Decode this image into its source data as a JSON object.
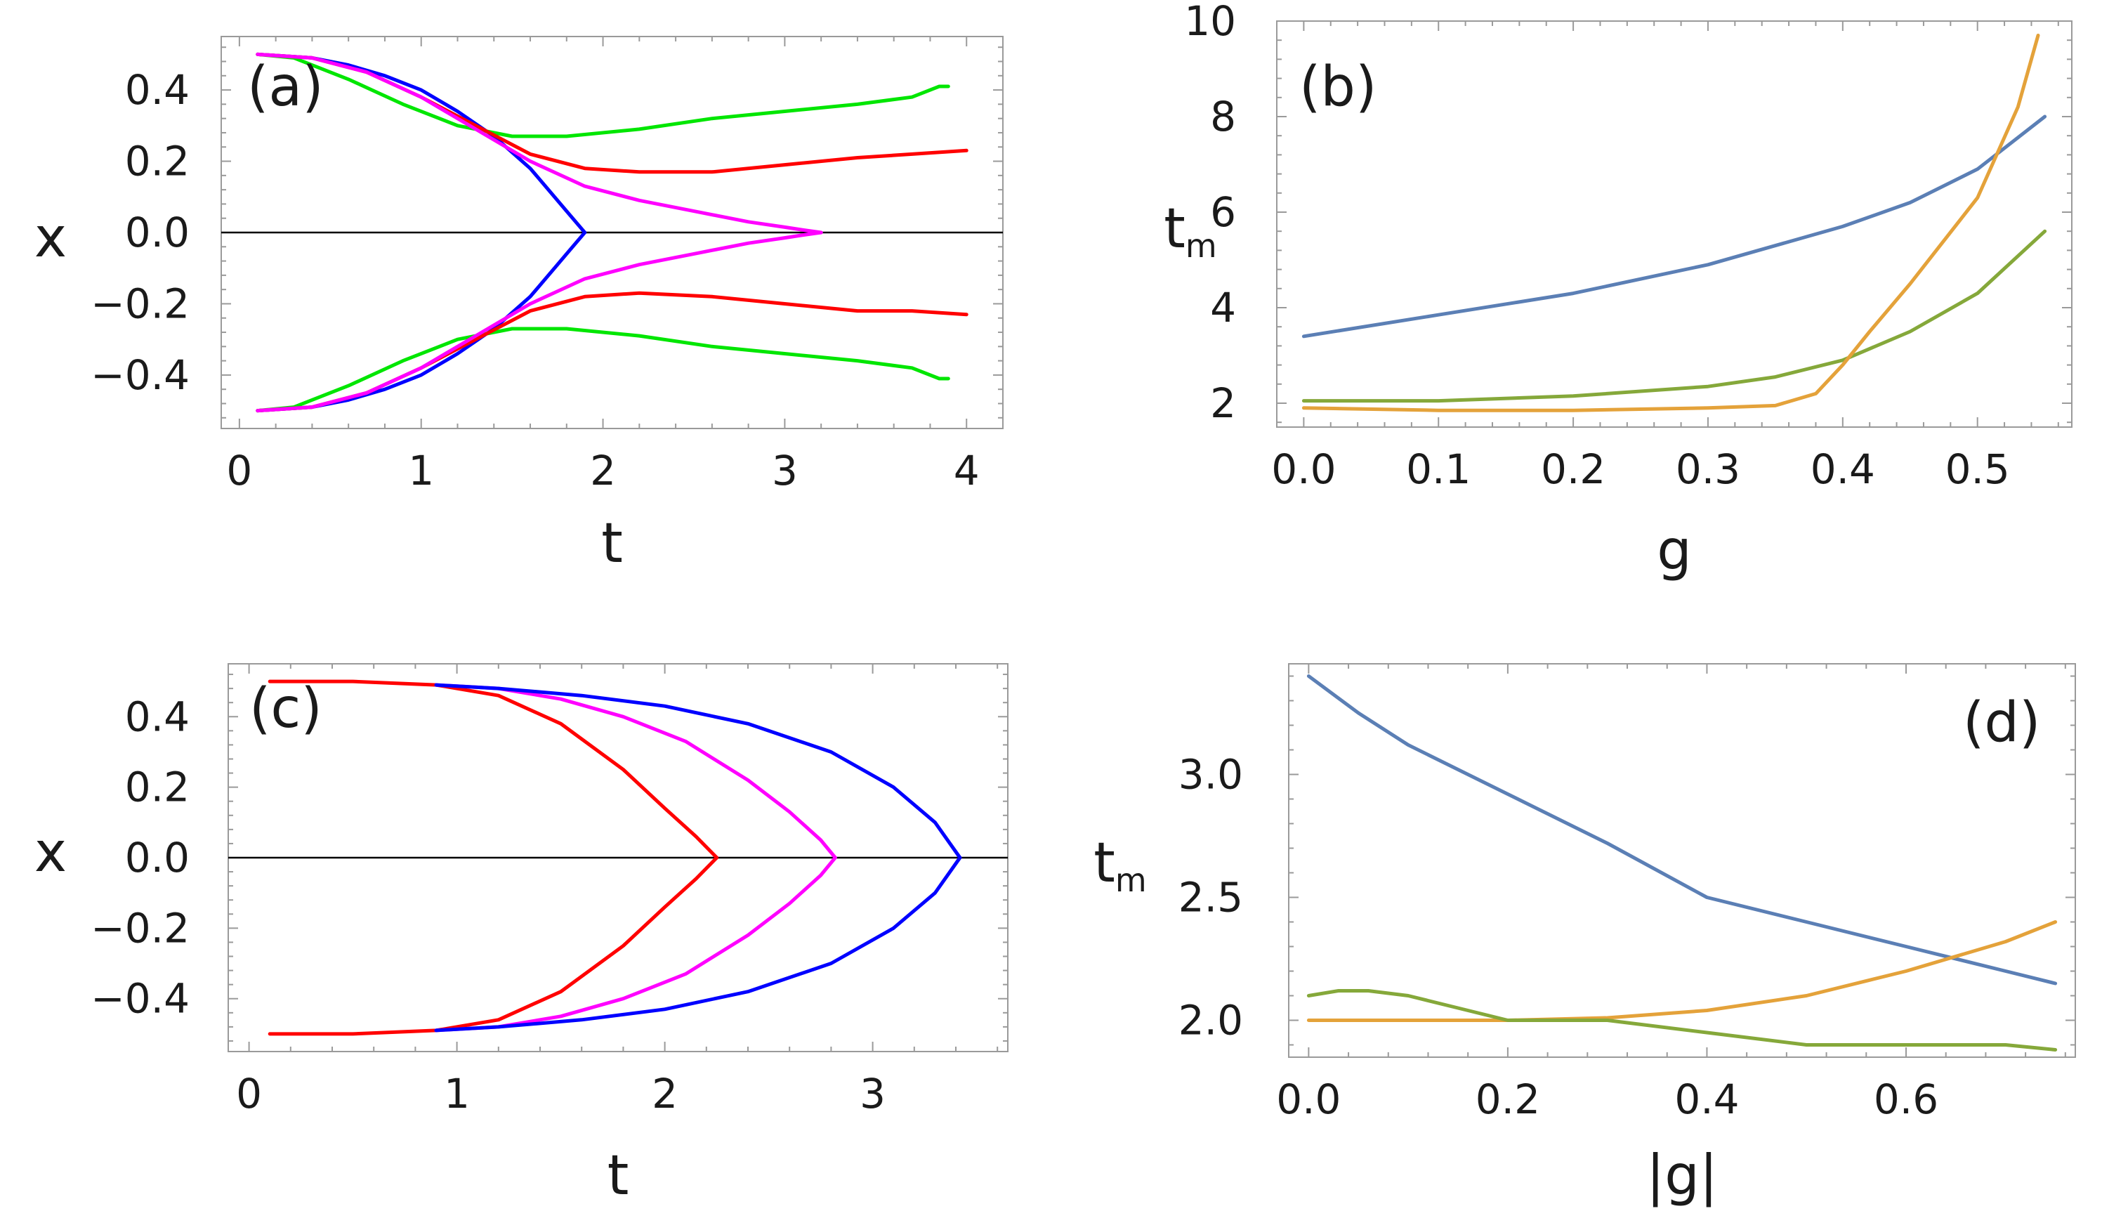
{
  "chart_data": [
    {
      "type": "line",
      "panel_label": "(a)",
      "xlabel": "t",
      "ylabel": "x",
      "xlim": [
        -0.1,
        4.2
      ],
      "ylim": [
        -0.55,
        0.55
      ],
      "xticks": [
        0,
        1,
        2,
        3,
        4
      ],
      "xtick_labels": [
        "0",
        "1",
        "2",
        "3",
        "4"
      ],
      "yticks": [
        -0.4,
        -0.2,
        0.0,
        0.2,
        0.4
      ],
      "ytick_labels": [
        "−0.4",
        "−0.2",
        "0.0",
        "0.2",
        "0.4"
      ],
      "zero_line": true,
      "series": [
        {
          "name": "blue-upper",
          "color": "#0000ff",
          "x": [
            0.1,
            0.4,
            0.6,
            0.8,
            1.0,
            1.2,
            1.4,
            1.6,
            1.7,
            1.8,
            1.9
          ],
          "y": [
            0.5,
            0.49,
            0.47,
            0.44,
            0.4,
            0.34,
            0.27,
            0.18,
            0.12,
            0.06,
            0.0
          ]
        },
        {
          "name": "blue-lower",
          "color": "#0000ff",
          "x": [
            0.1,
            0.4,
            0.6,
            0.8,
            1.0,
            1.2,
            1.4,
            1.6,
            1.7,
            1.8,
            1.9
          ],
          "y": [
            -0.5,
            -0.49,
            -0.47,
            -0.44,
            -0.4,
            -0.34,
            -0.27,
            -0.18,
            -0.12,
            -0.06,
            0.0
          ]
        },
        {
          "name": "green-upper",
          "color": "#00e600",
          "x": [
            0.1,
            0.3,
            0.6,
            0.9,
            1.2,
            1.5,
            1.8,
            2.2,
            2.6,
            3.0,
            3.4,
            3.7,
            3.85,
            3.9
          ],
          "y": [
            0.5,
            0.49,
            0.43,
            0.36,
            0.3,
            0.27,
            0.27,
            0.29,
            0.32,
            0.34,
            0.36,
            0.38,
            0.41,
            0.41
          ]
        },
        {
          "name": "green-lower",
          "color": "#00e600",
          "x": [
            0.1,
            0.3,
            0.6,
            0.9,
            1.2,
            1.5,
            1.8,
            2.2,
            2.6,
            3.0,
            3.4,
            3.7,
            3.85,
            3.9
          ],
          "y": [
            -0.5,
            -0.49,
            -0.43,
            -0.36,
            -0.3,
            -0.27,
            -0.27,
            -0.29,
            -0.32,
            -0.34,
            -0.36,
            -0.38,
            -0.41,
            -0.41
          ]
        },
        {
          "name": "red-upper",
          "color": "#ff0000",
          "x": [
            0.1,
            0.4,
            0.7,
            1.0,
            1.3,
            1.6,
            1.9,
            2.2,
            2.6,
            3.0,
            3.4,
            3.7,
            4.0
          ],
          "y": [
            0.5,
            0.49,
            0.45,
            0.38,
            0.3,
            0.22,
            0.18,
            0.17,
            0.17,
            0.19,
            0.21,
            0.22,
            0.23
          ]
        },
        {
          "name": "red-lower",
          "color": "#ff0000",
          "x": [
            0.1,
            0.4,
            0.7,
            1.0,
            1.3,
            1.6,
            1.9,
            2.2,
            2.6,
            3.0,
            3.4,
            3.7,
            4.0
          ],
          "y": [
            -0.5,
            -0.49,
            -0.45,
            -0.38,
            -0.3,
            -0.22,
            -0.18,
            -0.17,
            -0.18,
            -0.2,
            -0.22,
            -0.22,
            -0.23
          ]
        },
        {
          "name": "magenta-upper",
          "color": "#ff00ff",
          "x": [
            0.1,
            0.4,
            0.7,
            1.0,
            1.3,
            1.6,
            1.9,
            2.2,
            2.5,
            2.8,
            3.0,
            3.1,
            3.2
          ],
          "y": [
            0.5,
            0.49,
            0.45,
            0.38,
            0.29,
            0.2,
            0.13,
            0.09,
            0.06,
            0.03,
            0.015,
            0.007,
            0.0
          ]
        },
        {
          "name": "magenta-lower",
          "color": "#ff00ff",
          "x": [
            0.1,
            0.4,
            0.7,
            1.0,
            1.3,
            1.6,
            1.9,
            2.2,
            2.5,
            2.8,
            3.0,
            3.1,
            3.2
          ],
          "y": [
            -0.5,
            -0.49,
            -0.45,
            -0.38,
            -0.29,
            -0.2,
            -0.13,
            -0.09,
            -0.06,
            -0.03,
            -0.015,
            -0.007,
            0.0
          ]
        }
      ]
    },
    {
      "type": "line",
      "panel_label": "(b)",
      "xlabel": "g",
      "ylabel": "t",
      "ylabel_sub": "m",
      "xlim": [
        -0.02,
        0.57
      ],
      "ylim": [
        1.5,
        10.0
      ],
      "xticks": [
        0.0,
        0.1,
        0.2,
        0.3,
        0.4,
        0.5
      ],
      "xtick_labels": [
        "0.0",
        "0.1",
        "0.2",
        "0.3",
        "0.4",
        "0.5"
      ],
      "yticks": [
        2,
        4,
        6,
        8,
        10
      ],
      "ytick_labels": [
        "2",
        "4",
        "6",
        "8",
        "10"
      ],
      "zero_line": false,
      "series": [
        {
          "name": "blue",
          "color": "#5b7fb5",
          "x": [
            0.0,
            0.1,
            0.2,
            0.3,
            0.4,
            0.45,
            0.5,
            0.55
          ],
          "y": [
            3.4,
            3.85,
            4.3,
            4.9,
            5.7,
            6.2,
            6.9,
            8.0
          ]
        },
        {
          "name": "green",
          "color": "#85a83a",
          "x": [
            0.0,
            0.1,
            0.2,
            0.3,
            0.35,
            0.4,
            0.45,
            0.5,
            0.55
          ],
          "y": [
            2.05,
            2.05,
            2.15,
            2.35,
            2.55,
            2.9,
            3.5,
            4.3,
            5.6
          ]
        },
        {
          "name": "orange",
          "color": "#e4a23a",
          "x": [
            0.0,
            0.1,
            0.2,
            0.3,
            0.35,
            0.38,
            0.4,
            0.42,
            0.45,
            0.5,
            0.53,
            0.545
          ],
          "y": [
            1.9,
            1.85,
            1.85,
            1.9,
            1.95,
            2.2,
            2.8,
            3.5,
            4.5,
            6.3,
            8.2,
            9.7
          ]
        }
      ]
    },
    {
      "type": "line",
      "panel_label": "(c)",
      "xlabel": "t",
      "ylabel": "x",
      "xlim": [
        -0.1,
        3.65
      ],
      "ylim": [
        -0.55,
        0.55
      ],
      "xticks": [
        0,
        1,
        2,
        3
      ],
      "xtick_labels": [
        "0",
        "1",
        "2",
        "3"
      ],
      "yticks": [
        -0.4,
        -0.2,
        0.0,
        0.2,
        0.4
      ],
      "ytick_labels": [
        "−0.4",
        "−0.2",
        "0.0",
        "0.2",
        "0.4"
      ],
      "zero_line": true,
      "series": [
        {
          "name": "red-upper",
          "color": "#ff0000",
          "x": [
            0.1,
            0.5,
            0.9,
            1.2,
            1.5,
            1.8,
            2.0,
            2.15,
            2.25
          ],
          "y": [
            0.5,
            0.5,
            0.49,
            0.46,
            0.38,
            0.25,
            0.14,
            0.06,
            0.0
          ]
        },
        {
          "name": "red-lower",
          "color": "#ff0000",
          "x": [
            0.1,
            0.5,
            0.9,
            1.2,
            1.5,
            1.8,
            2.0,
            2.15,
            2.25
          ],
          "y": [
            -0.5,
            -0.5,
            -0.49,
            -0.46,
            -0.38,
            -0.25,
            -0.14,
            -0.06,
            0.0
          ]
        },
        {
          "name": "magenta-upper",
          "color": "#ff00ff",
          "x": [
            0.9,
            1.2,
            1.5,
            1.8,
            2.1,
            2.4,
            2.6,
            2.75,
            2.82
          ],
          "y": [
            0.49,
            0.48,
            0.45,
            0.4,
            0.33,
            0.22,
            0.13,
            0.05,
            0.0
          ]
        },
        {
          "name": "magenta-lower",
          "color": "#ff00ff",
          "x": [
            0.9,
            1.2,
            1.5,
            1.8,
            2.1,
            2.4,
            2.6,
            2.75,
            2.82
          ],
          "y": [
            -0.49,
            -0.48,
            -0.45,
            -0.4,
            -0.33,
            -0.22,
            -0.13,
            -0.05,
            0.0
          ]
        },
        {
          "name": "blue-upper",
          "color": "#0000ff",
          "x": [
            0.9,
            1.2,
            1.6,
            2.0,
            2.4,
            2.8,
            3.1,
            3.3,
            3.42
          ],
          "y": [
            0.49,
            0.48,
            0.46,
            0.43,
            0.38,
            0.3,
            0.2,
            0.1,
            0.0
          ]
        },
        {
          "name": "blue-lower",
          "color": "#0000ff",
          "x": [
            0.9,
            1.2,
            1.6,
            2.0,
            2.4,
            2.8,
            3.1,
            3.3,
            3.42
          ],
          "y": [
            -0.49,
            -0.48,
            -0.46,
            -0.43,
            -0.38,
            -0.3,
            -0.2,
            -0.1,
            0.0
          ]
        }
      ]
    },
    {
      "type": "line",
      "panel_label": "(d)",
      "xlabel": "|g|",
      "ylabel": "t",
      "ylabel_sub": "m",
      "xlim": [
        -0.02,
        0.77
      ],
      "ylim": [
        1.85,
        3.45
      ],
      "xticks": [
        0.0,
        0.2,
        0.4,
        0.6
      ],
      "xtick_labels": [
        "0.0",
        "0.2",
        "0.4",
        "0.6"
      ],
      "yticks": [
        2.0,
        2.5,
        3.0
      ],
      "ytick_labels": [
        "2.0",
        "2.5",
        "3.0"
      ],
      "zero_line": false,
      "series": [
        {
          "name": "blue",
          "color": "#5b7fb5",
          "x": [
            0.0,
            0.05,
            0.1,
            0.2,
            0.3,
            0.4,
            0.5,
            0.6,
            0.7,
            0.75
          ],
          "y": [
            3.4,
            3.25,
            3.12,
            2.92,
            2.72,
            2.5,
            2.4,
            2.3,
            2.2,
            2.15
          ]
        },
        {
          "name": "orange",
          "color": "#e4a23a",
          "x": [
            0.0,
            0.1,
            0.2,
            0.3,
            0.4,
            0.5,
            0.6,
            0.7,
            0.75
          ],
          "y": [
            2.0,
            2.0,
            2.0,
            2.01,
            2.04,
            2.1,
            2.2,
            2.32,
            2.4
          ]
        },
        {
          "name": "green",
          "color": "#85a83a",
          "x": [
            0.0,
            0.03,
            0.06,
            0.1,
            0.15,
            0.2,
            0.3,
            0.4,
            0.5,
            0.6,
            0.7,
            0.75
          ],
          "y": [
            2.1,
            2.12,
            2.12,
            2.1,
            2.05,
            2.0,
            2.0,
            1.95,
            1.9,
            1.9,
            1.9,
            1.88
          ]
        }
      ]
    }
  ]
}
